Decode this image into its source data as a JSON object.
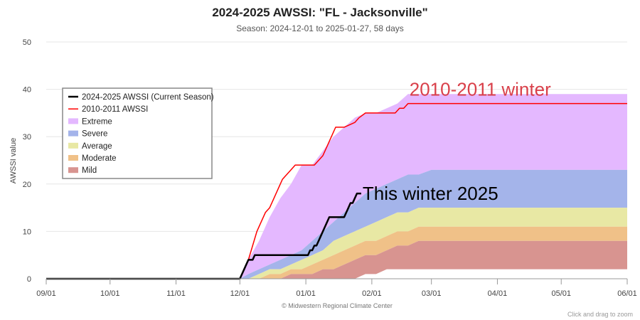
{
  "title": "2024-2025 AWSSI: \"FL - Jacksonville\"",
  "subtitle": "Season: 2024-12-01 to 2025-01-27, 58 days",
  "credit": "© Midwestern Regional Climate Center",
  "zoom_hint": "Click and drag to zoom",
  "chart_data": {
    "type": "area",
    "title": "2024-2025 AWSSI: \"FL - Jacksonville\"",
    "subtitle": "Season: 2024-12-01 to 2025-01-27, 58 days",
    "xlabel": "",
    "ylabel": "AWSSI value",
    "xlim": [
      "2024-09-01",
      "2025-06-01"
    ],
    "x_ticks": [
      "2024-09-01",
      "2024-10-01",
      "2024-11-01",
      "2024-12-01",
      "2025-01-01",
      "2025-02-01",
      "2025-03-01",
      "2025-04-01",
      "2025-05-01",
      "2025-06-01"
    ],
    "x_tick_labels": [
      "09/01",
      "10/01",
      "11/01",
      "12/01",
      "01/01",
      "02/01",
      "03/01",
      "04/01",
      "05/01",
      "06/01"
    ],
    "ylim": [
      0,
      50
    ],
    "y_ticks": [
      0,
      10,
      20,
      30,
      40,
      50
    ],
    "grid": true,
    "legend_position": "top-left",
    "category_bands": {
      "x": [
        "2024-12-01",
        "2024-12-05",
        "2024-12-10",
        "2024-12-15",
        "2024-12-20",
        "2024-12-25",
        "2024-12-30",
        "2025-01-04",
        "2025-01-09",
        "2025-01-14",
        "2025-01-19",
        "2025-01-24",
        "2025-01-29",
        "2025-02-03",
        "2025-02-08",
        "2025-02-13",
        "2025-02-18",
        "2025-02-23",
        "2025-03-01",
        "2025-06-01"
      ],
      "mild_lower": [
        0,
        0,
        0,
        0,
        0,
        0,
        0,
        0,
        0,
        0,
        0,
        0,
        1,
        1,
        2,
        2,
        2,
        2,
        2,
        2
      ],
      "moderate_lower": [
        0,
        0,
        0,
        0,
        0,
        1,
        1,
        1,
        2,
        2,
        3,
        4,
        5,
        5,
        6,
        7,
        7,
        8,
        8,
        8
      ],
      "average_lower": [
        0,
        0,
        0,
        1,
        1,
        2,
        2,
        3,
        4,
        5,
        6,
        7,
        8,
        8,
        9,
        10,
        10,
        11,
        11,
        11
      ],
      "severe_lower": [
        0,
        0,
        1,
        2,
        2,
        3,
        4,
        5,
        6,
        8,
        9,
        10,
        11,
        12,
        13,
        14,
        14,
        15,
        15,
        15
      ],
      "extreme_lower": [
        0,
        1,
        2,
        3,
        4,
        5,
        6,
        8,
        10,
        12,
        14,
        16,
        18,
        19,
        20,
        21,
        22,
        22,
        23,
        23
      ],
      "extreme_upper": [
        0,
        4,
        8,
        13,
        17,
        20,
        24,
        24,
        27,
        30,
        32,
        34,
        35,
        35,
        36,
        37,
        39,
        39,
        39,
        39
      ]
    },
    "series": [
      {
        "name": "2024-2025 AWSSI (Current Season)",
        "color": "#000000",
        "x": [
          "2024-09-01",
          "2024-11-30",
          "2024-12-01",
          "2024-12-03",
          "2024-12-04",
          "2024-12-05",
          "2024-12-06",
          "2024-12-07",
          "2024-12-08",
          "2025-01-02",
          "2025-01-03",
          "2025-01-04",
          "2025-01-05",
          "2025-01-06",
          "2025-01-07",
          "2025-01-08",
          "2025-01-09",
          "2025-01-10",
          "2025-01-11",
          "2025-01-12",
          "2025-01-13",
          "2025-01-19",
          "2025-01-20",
          "2025-01-21",
          "2025-01-22",
          "2025-01-23",
          "2025-01-24",
          "2025-01-25",
          "2025-01-27"
        ],
        "values": [
          0,
          0,
          0,
          2,
          3,
          4,
          4,
          4,
          5,
          5,
          6,
          6,
          7,
          7,
          8,
          9,
          10,
          11,
          12,
          13,
          13,
          13,
          14,
          15,
          16,
          16,
          17,
          18,
          18
        ]
      },
      {
        "name": "2010-2011 AWSSI",
        "color": "#ff0000",
        "x": [
          "2024-09-01",
          "2024-12-01",
          "2024-12-03",
          "2024-12-05",
          "2024-12-07",
          "2024-12-09",
          "2024-12-11",
          "2024-12-13",
          "2024-12-15",
          "2024-12-17",
          "2024-12-19",
          "2024-12-21",
          "2024-12-23",
          "2024-12-25",
          "2024-12-27",
          "2024-12-29",
          "2024-12-30",
          "2025-01-05",
          "2025-01-07",
          "2025-01-09",
          "2025-01-11",
          "2025-01-13",
          "2025-01-15",
          "2025-01-17",
          "2025-01-19",
          "2025-01-24",
          "2025-01-26",
          "2025-01-29",
          "2025-02-12",
          "2025-02-14",
          "2025-02-16",
          "2025-02-18",
          "2025-06-01"
        ],
        "values": [
          0,
          0,
          2,
          4,
          7,
          10,
          12,
          14,
          15,
          17,
          19,
          21,
          22,
          23,
          24,
          24,
          24,
          24,
          25,
          26,
          28,
          30,
          32,
          32,
          32,
          33,
          34,
          35,
          35,
          36,
          36,
          37,
          37
        ]
      },
      {
        "name": "Extreme",
        "color": "#e4b8ff"
      },
      {
        "name": "Severe",
        "color": "#a4b4ea"
      },
      {
        "name": "Average",
        "color": "#e8e8a4"
      },
      {
        "name": "Moderate",
        "color": "#f0c188"
      },
      {
        "name": "Mild",
        "color": "#d89490"
      }
    ],
    "annotations": [
      {
        "text": "2010-2011 winter",
        "x": "2025-02-18",
        "y": 39,
        "color": "#d9404a"
      },
      {
        "text": "This winter 2025",
        "x": "2025-01-27",
        "y": 18,
        "color": "#000000"
      }
    ]
  }
}
